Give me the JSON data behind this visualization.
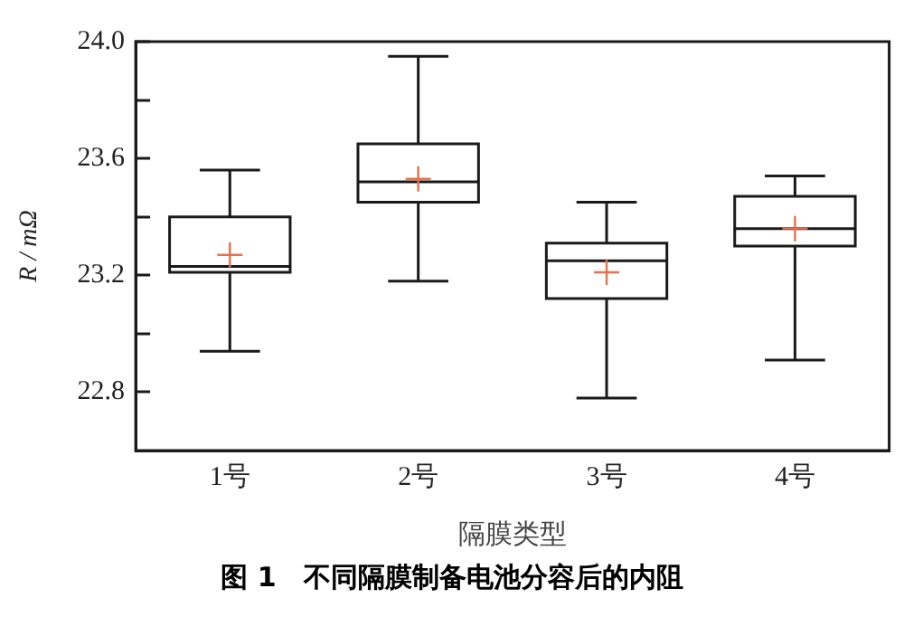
{
  "chart_data": {
    "type": "box",
    "title": "图 1　不同隔膜制备电池分容后的内阻",
    "xlabel": "隔膜类型",
    "ylabel": "R / mΩ",
    "categories": [
      "1号",
      "2号",
      "3号",
      "4号"
    ],
    "boxes": [
      {
        "low": 22.94,
        "q1": 23.21,
        "median": 23.23,
        "q3": 23.4,
        "high": 23.56
      },
      {
        "low": 23.18,
        "q1": 23.45,
        "median": 23.52,
        "q3": 23.65,
        "high": 23.95
      },
      {
        "low": 22.78,
        "q1": 23.12,
        "median": 23.25,
        "q3": 23.31,
        "high": 23.45
      },
      {
        "low": 22.91,
        "q1": 23.3,
        "median": 23.36,
        "q3": 23.47,
        "high": 23.54
      }
    ],
    "color": "#1a1a1a",
    "series": [
      {
        "type": "scatter",
        "x": [
          "1号",
          "2号",
          "3号",
          "4号"
        ],
        "values": [
          23.27,
          23.53,
          23.21,
          23.36
        ],
        "color": "#e8704a",
        "marker": "cross"
      }
    ],
    "ylim": [
      22.6,
      24.0
    ],
    "yticks": [
      {
        "value": 22.8,
        "label": "22.8"
      },
      {
        "value": 23.0,
        "label": null
      },
      {
        "value": 23.2,
        "label": "23.2"
      },
      {
        "value": 23.4,
        "label": null
      },
      {
        "value": 23.6,
        "label": "23.6"
      },
      {
        "value": 23.8,
        "label": null
      },
      {
        "value": 24.0,
        "label": "24.0"
      }
    ],
    "grid": false,
    "legend": false
  }
}
